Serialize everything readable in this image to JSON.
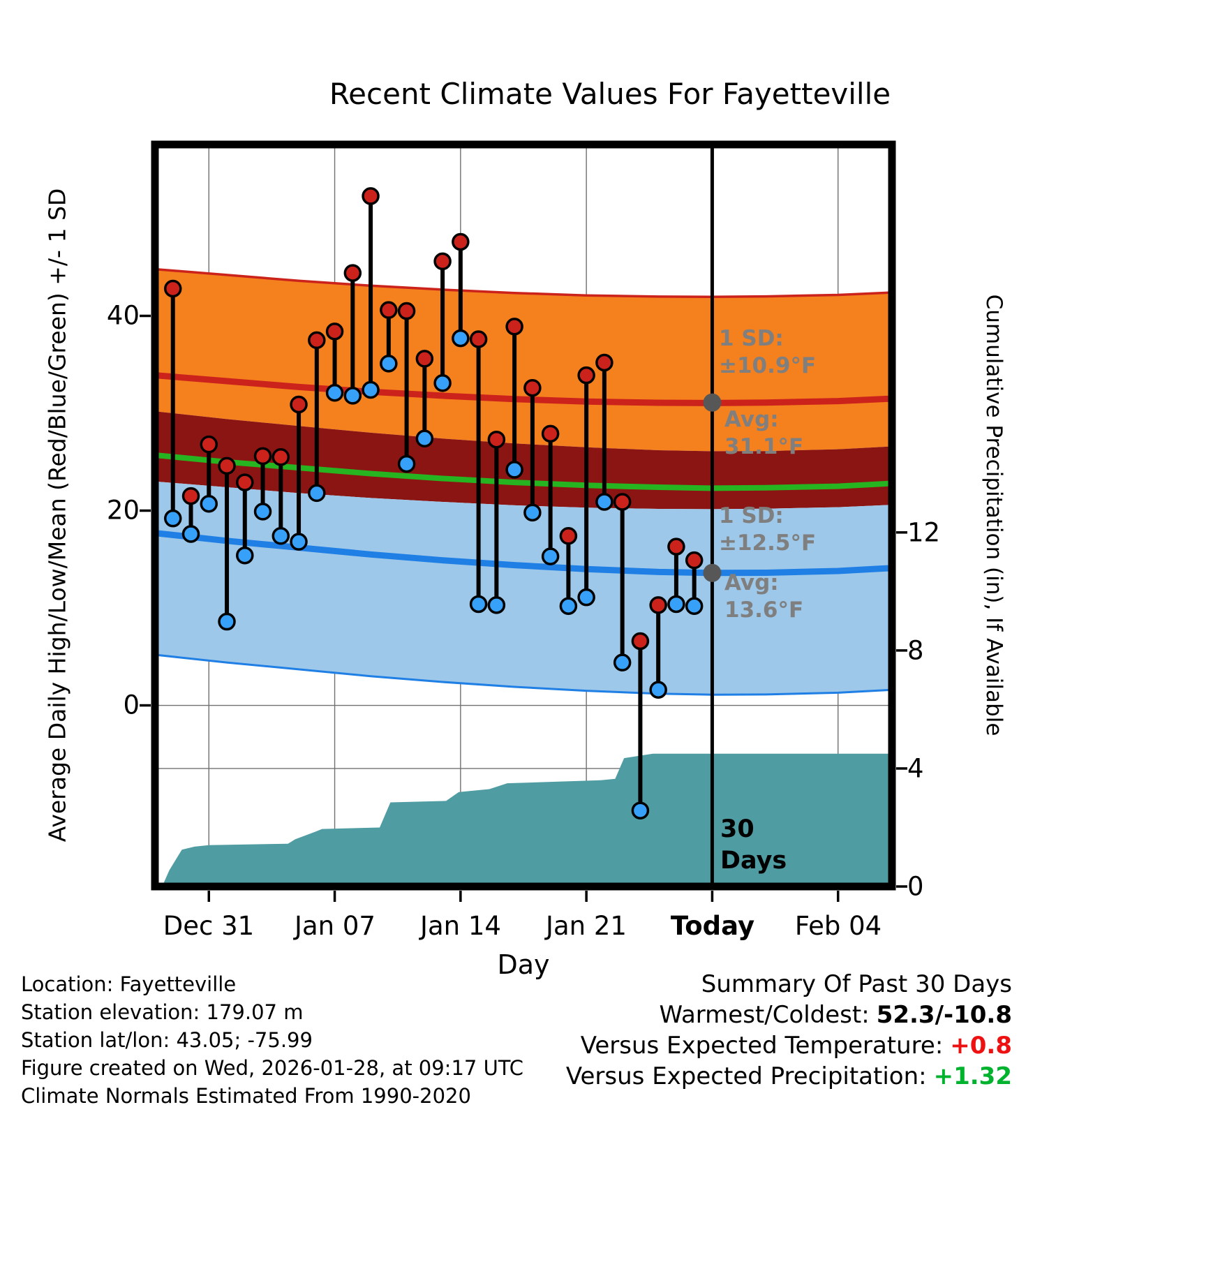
{
  "chart_data": {
    "type": "line",
    "title": "Recent Climate Values For Fayetteville",
    "xlabel": "Day",
    "ylabel_left": "Average Daily High/Low/Mean (Red/Blue/Green) +/- 1 SD",
    "ylabel_right": "Cumulative Precipitation (in), If Available",
    "x_axis": {
      "domain_days": [
        0,
        41
      ],
      "ticks": [
        {
          "day": 3,
          "label": "Dec 31",
          "bold": false
        },
        {
          "day": 10,
          "label": "Jan 07",
          "bold": false
        },
        {
          "day": 17,
          "label": "Jan 14",
          "bold": false
        },
        {
          "day": 24,
          "label": "Jan 21",
          "bold": false
        },
        {
          "day": 31,
          "label": "Today",
          "bold": true
        },
        {
          "day": 38,
          "label": "Feb 04",
          "bold": false
        }
      ]
    },
    "y_left_axis": {
      "range": [
        -18.6,
        57.6
      ],
      "ticks": [
        0,
        20,
        40
      ]
    },
    "y_right_axis": {
      "ticks": [
        0,
        4,
        8,
        12
      ],
      "degF_per_inch": 3.03
    },
    "today_day": 31,
    "today_line_label": [
      "30",
      "Days"
    ],
    "normals": {
      "high_sd": 10.9,
      "low_sd": 12.5,
      "samples_day": [
        0,
        4,
        8,
        12,
        16,
        20,
        24,
        28,
        31,
        34,
        38,
        41
      ],
      "high_avg": [
        33.9,
        33.3,
        32.7,
        32.2,
        31.8,
        31.45,
        31.2,
        31.08,
        31.05,
        31.1,
        31.25,
        31.5
      ],
      "low_avg": [
        17.7,
        16.9,
        16.2,
        15.5,
        14.9,
        14.4,
        14.0,
        13.7,
        13.6,
        13.62,
        13.8,
        14.1
      ],
      "mean_avg": [
        25.7,
        25.0,
        24.4,
        23.8,
        23.3,
        22.9,
        22.6,
        22.4,
        22.3,
        22.35,
        22.5,
        22.8
      ]
    },
    "annotations": {
      "high": {
        "sd_line1": "1 SD:",
        "sd_line2": "±10.9°F",
        "avg_line1": "Avg:",
        "avg_line2": "31.1°F",
        "avg_value": 31.1
      },
      "low": {
        "sd_line1": "1 SD:",
        "sd_line2": "±12.5°F",
        "avg_line1": "Avg:",
        "avg_line2": "13.6°F",
        "avg_value": 13.6
      }
    },
    "daily": {
      "start_day": 1,
      "high": [
        42.8,
        21.5,
        26.8,
        24.6,
        22.9,
        25.6,
        25.5,
        30.9,
        37.5,
        38.4,
        44.4,
        52.3,
        40.6,
        40.5,
        35.6,
        45.6,
        47.6,
        37.6,
        27.3,
        38.9,
        32.6,
        27.9,
        17.4,
        33.9,
        35.2,
        20.9,
        6.6,
        10.3,
        16.3,
        14.9
      ],
      "low": [
        19.2,
        17.6,
        20.7,
        8.6,
        15.4,
        19.9,
        17.4,
        16.8,
        21.8,
        32.1,
        31.8,
        32.4,
        35.1,
        24.8,
        27.4,
        33.1,
        37.7,
        10.4,
        10.3,
        24.2,
        19.8,
        15.3,
        10.2,
        11.1,
        20.9,
        4.4,
        -10.8,
        1.6,
        10.4,
        10.2
      ]
    },
    "cumulative_precip": {
      "days": [
        0.4,
        0.8,
        1.5,
        2.2,
        3.0,
        7.4,
        7.8,
        8.9,
        9.3,
        12.5,
        13.1,
        16.2,
        16.9,
        18.6,
        19.6,
        24.8,
        25.6,
        26.1,
        27.7,
        41.0
      ],
      "inches": [
        0.0,
        0.55,
        1.25,
        1.35,
        1.4,
        1.45,
        1.6,
        1.85,
        1.95,
        2.0,
        2.85,
        2.9,
        3.2,
        3.3,
        3.5,
        3.6,
        3.65,
        4.35,
        4.5,
        4.5
      ]
    },
    "colors": {
      "orange_band": "#F5811E",
      "red_line": "#CB231C",
      "maroon_band": "#8B1512",
      "green_line": "#27B421",
      "blue_band": "#9DC8E9",
      "blue_line": "#1F7FE5",
      "teal_fill": "#4F9CA2",
      "marker_high": "#CB231C",
      "marker_low": "#37A0F8",
      "gray_annotation": "#7F7F7F",
      "gray_dot": "#575757",
      "grid": "#707070"
    }
  },
  "station_info": {
    "location": "Location: Fayetteville",
    "elevation": "Station elevation: 179.07 m",
    "lat_lon": "Station lat/lon: 43.05; -75.99",
    "created": "Figure created on Wed, 2026-01-28, at 09:17 UTC",
    "normals_note": "Climate Normals Estimated From 1990-2020"
  },
  "summary": {
    "title": "Summary Of Past 30 Days",
    "rows": [
      {
        "label": "Warmest/Coldest:",
        "value": "52.3/-10.8",
        "color": "#000000"
      },
      {
        "label": "Versus Expected Temperature:",
        "value": "+0.8",
        "color": "#EE1111"
      },
      {
        "label": "Versus Expected Precipitation:",
        "value": "+1.32",
        "color": "#00B22D"
      }
    ]
  }
}
